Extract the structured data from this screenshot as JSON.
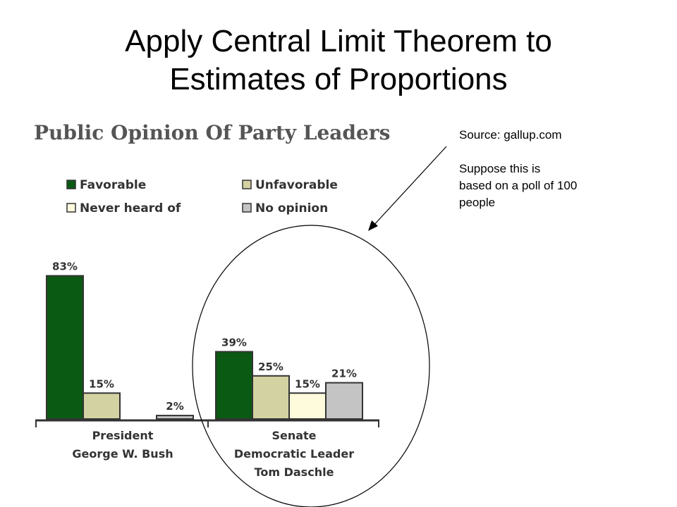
{
  "slide": {
    "title_line1": "Apply Central Limit Theorem to",
    "title_line2": "Estimates of Proportions"
  },
  "note": {
    "source": "Source: gallup.com",
    "line1": "Suppose this is",
    "line2": "based on a poll of 100",
    "line3": "people"
  },
  "chart_data": {
    "type": "bar",
    "title": "Public Opinion Of Party Leaders",
    "categories": [
      [
        "President",
        "George W. Bush"
      ],
      [
        "Senate",
        "Democratic Leader",
        "Tom Daschle"
      ]
    ],
    "series": [
      {
        "name": "Favorable",
        "color": "#0b5a13",
        "values": [
          83,
          39
        ],
        "labels": [
          "83%",
          "39%"
        ]
      },
      {
        "name": "Unfavorable",
        "color": "#d3d2a2",
        "values": [
          15,
          25
        ],
        "labels": [
          "15%",
          "25%"
        ]
      },
      {
        "name": "Never heard of",
        "color": "#fdfbdc",
        "values": [
          null,
          15
        ],
        "labels": [
          "",
          "15%"
        ]
      },
      {
        "name": "No opinion",
        "color": "#c4c4c4",
        "values": [
          2,
          21
        ],
        "labels": [
          "2%",
          "21%"
        ]
      }
    ],
    "legend_position": "top",
    "grid": false
  }
}
